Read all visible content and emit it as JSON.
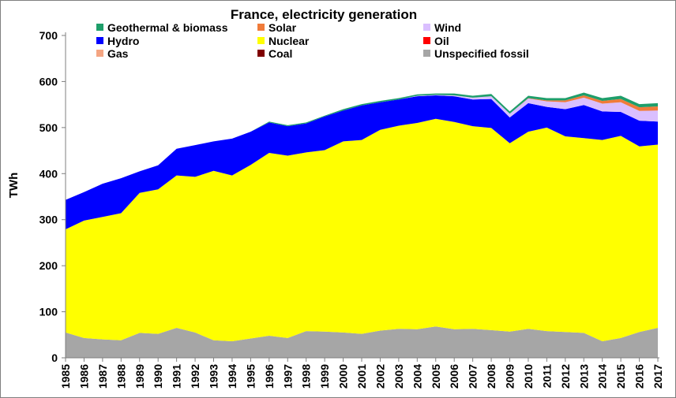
{
  "chart_data": {
    "type": "area",
    "stacked": true,
    "title": "France, electricity generation",
    "xlabel": "",
    "ylabel": "TWh",
    "ylim": [
      0,
      700
    ],
    "yticks": [
      0,
      100,
      200,
      300,
      400,
      500,
      600,
      700
    ],
    "grid": false,
    "legend_position": "top",
    "x": [
      1985,
      1986,
      1987,
      1988,
      1989,
      1990,
      1991,
      1992,
      1993,
      1994,
      1995,
      1996,
      1997,
      1998,
      1999,
      2000,
      2001,
      2002,
      2003,
      2004,
      2005,
      2006,
      2007,
      2008,
      2009,
      2010,
      2011,
      2012,
      2013,
      2014,
      2015,
      2016,
      2017
    ],
    "series": [
      {
        "name": "Unspecified fossil",
        "color": "#a6a6a6",
        "values": [
          55,
          43,
          40,
          38,
          54,
          52,
          65,
          55,
          38,
          36,
          42,
          48,
          43,
          58,
          57,
          55,
          52,
          59,
          63,
          62,
          68,
          62,
          63,
          60,
          57,
          63,
          58,
          56,
          54,
          36,
          43,
          56,
          65
        ]
      },
      {
        "name": "Coal",
        "color": "#7f0000",
        "values": [
          0,
          0,
          0,
          0,
          0,
          0,
          0,
          0,
          0,
          0,
          0,
          0,
          0,
          0,
          0,
          0,
          0,
          0,
          0,
          0,
          0,
          0,
          0,
          0,
          0,
          0,
          0,
          0,
          0,
          0,
          0,
          0,
          0
        ]
      },
      {
        "name": "Gas",
        "color": "#f4a582",
        "values": [
          0,
          0,
          0,
          0,
          0,
          0,
          0,
          0,
          0,
          0,
          0,
          0,
          0,
          0,
          0,
          0,
          0,
          0,
          0,
          0,
          0,
          0,
          0,
          0,
          0,
          0,
          0,
          0,
          0,
          0,
          0,
          0,
          0
        ]
      },
      {
        "name": "Oil",
        "color": "#ff0000",
        "values": [
          0,
          0,
          0,
          0,
          0,
          0,
          0,
          0,
          0,
          0,
          0,
          0,
          0,
          0,
          0,
          0,
          0,
          0,
          0,
          0,
          0,
          0,
          0,
          0,
          0,
          0,
          0,
          0,
          0,
          0,
          0,
          0,
          0
        ]
      },
      {
        "name": "Nuclear",
        "color": "#ffff00",
        "values": [
          224,
          255,
          266,
          276,
          304,
          314,
          331,
          338,
          368,
          360,
          377,
          397,
          396,
          388,
          394,
          415,
          421,
          436,
          441,
          448,
          451,
          450,
          440,
          439,
          409,
          428,
          442,
          425,
          423,
          437,
          439,
          403,
          398
        ]
      },
      {
        "name": "Hydro",
        "color": "#0000ff",
        "values": [
          64,
          62,
          72,
          76,
          47,
          52,
          58,
          69,
          64,
          80,
          72,
          66,
          64,
          63,
          73,
          67,
          75,
          60,
          57,
          58,
          51,
          56,
          58,
          63,
          56,
          62,
          45,
          59,
          72,
          62,
          52,
          56,
          50
        ]
      },
      {
        "name": "Wind",
        "color": "#dabfff",
        "values": [
          0,
          0,
          0,
          0,
          0,
          0,
          0,
          0,
          0,
          0,
          0,
          0,
          0,
          0,
          0,
          0,
          0,
          0,
          0,
          1,
          1,
          2,
          4,
          6,
          8,
          10,
          12,
          15,
          16,
          17,
          21,
          21,
          24
        ]
      },
      {
        "name": "Solar",
        "color": "#f07b3a",
        "values": [
          0,
          0,
          0,
          0,
          0,
          0,
          0,
          0,
          0,
          0,
          0,
          0,
          0,
          0,
          0,
          0,
          0,
          0,
          0,
          0,
          0,
          0,
          0,
          0,
          0,
          1,
          2,
          4,
          5,
          6,
          7,
          8,
          9
        ]
      },
      {
        "name": "Geothermal & biomass",
        "color": "#1e9e6a",
        "values": [
          0,
          0,
          0,
          0,
          0,
          0,
          0,
          0,
          0,
          0,
          0,
          2,
          2,
          2,
          2,
          3,
          3,
          3,
          3,
          3,
          3,
          4,
          4,
          5,
          5,
          5,
          5,
          5,
          6,
          6,
          7,
          7,
          7
        ]
      }
    ],
    "legend": [
      {
        "name": "Geothermal & biomass",
        "color": "#1e9e6a"
      },
      {
        "name": "Solar",
        "color": "#f07b3a"
      },
      {
        "name": "Wind",
        "color": "#dabfff"
      },
      {
        "name": "Hydro",
        "color": "#0000ff"
      },
      {
        "name": "Nuclear",
        "color": "#ffff00"
      },
      {
        "name": "Oil",
        "color": "#ff0000"
      },
      {
        "name": "Gas",
        "color": "#f4a582"
      },
      {
        "name": "Coal",
        "color": "#7f0000"
      },
      {
        "name": "Unspecified fossil",
        "color": "#a6a6a6"
      }
    ]
  }
}
